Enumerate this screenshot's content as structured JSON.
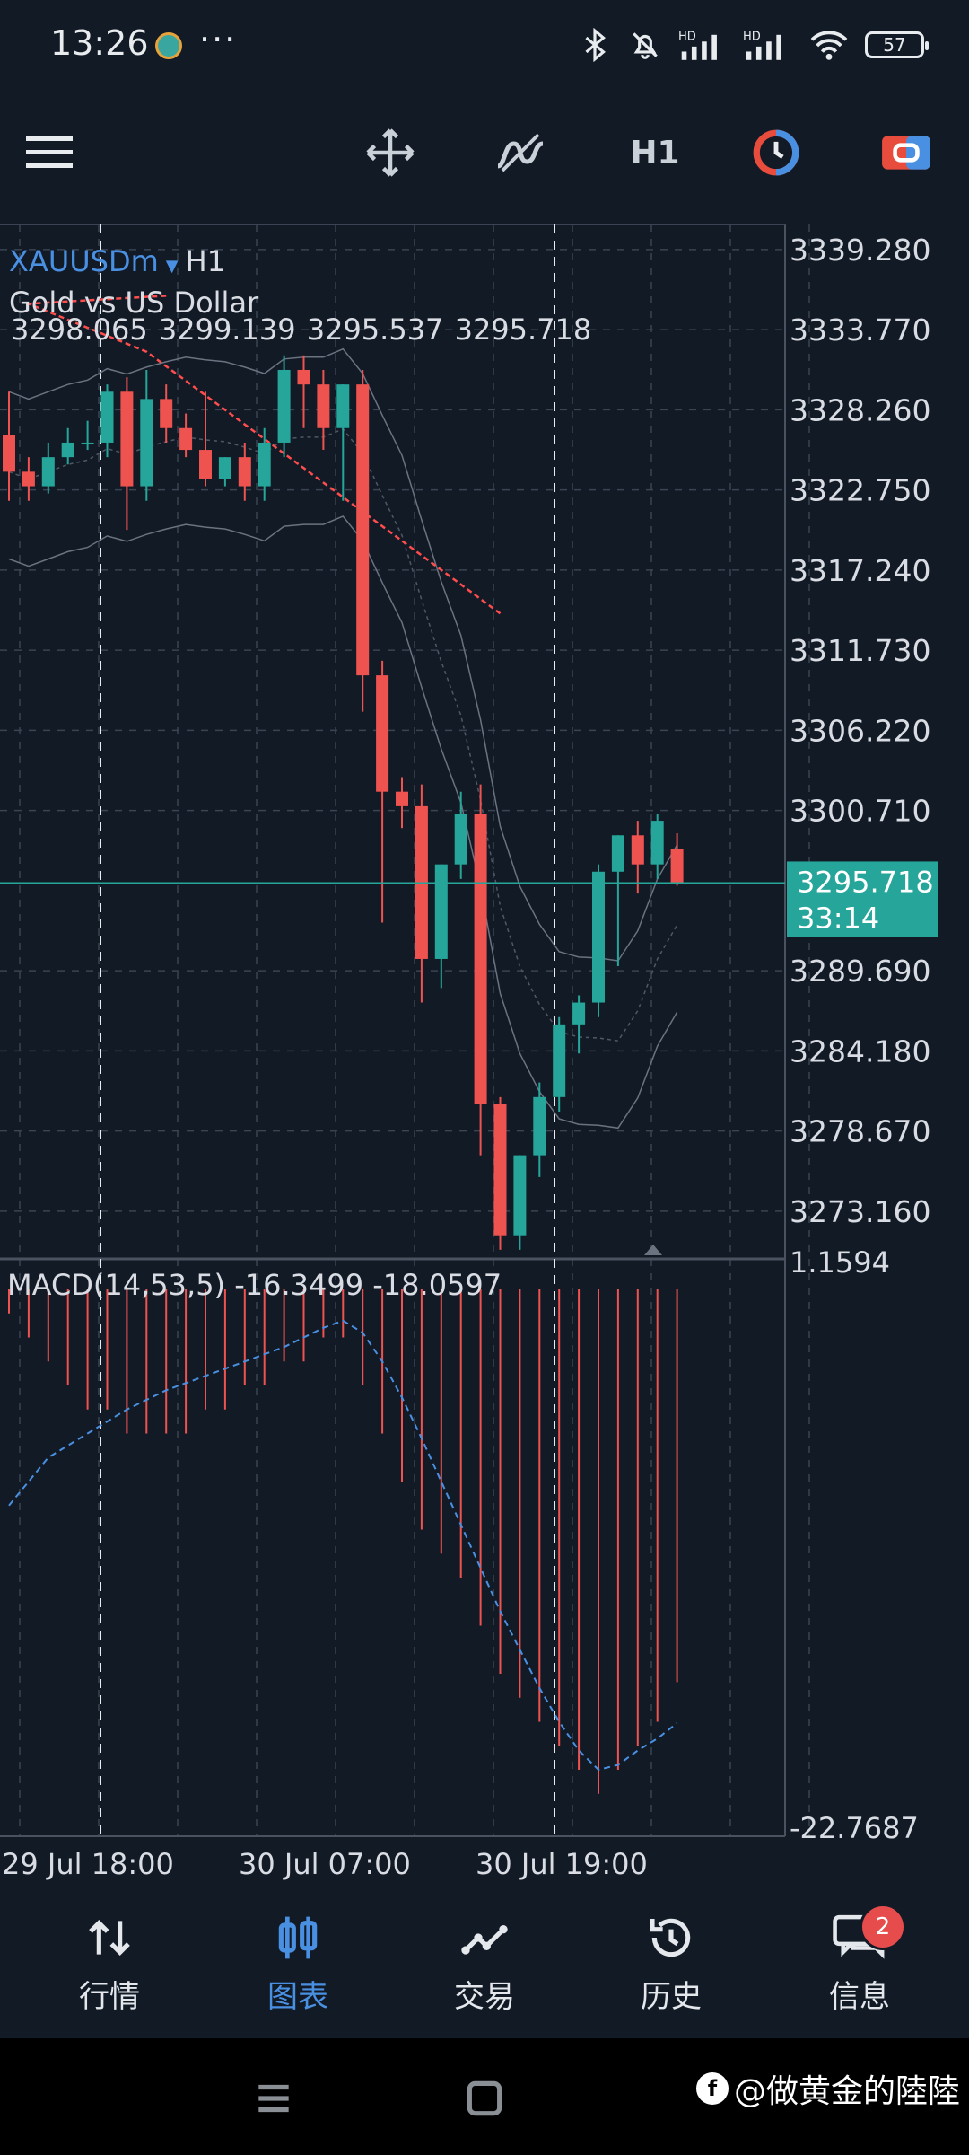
{
  "status_bar": {
    "time": "13:26",
    "more": "···",
    "battery": "57",
    "icons": [
      "bluetooth-icon",
      "mute-icon",
      "hd-signal-icon",
      "hd-signal-icon",
      "wifi-icon",
      "battery-icon"
    ]
  },
  "toolbar": {
    "icons": [
      "menu-icon",
      "move-crosshair-icon",
      "indicators-icon",
      "timer-icon",
      "account-icon"
    ],
    "timeframe": "H1"
  },
  "chart": {
    "symbol": "XAUUSDm",
    "timeframe": "H1",
    "description": "Gold vs US Dollar",
    "ohlc": "3298.065 3299.139 3295.537 3295.718",
    "current_price": "3295.718",
    "countdown": "33:14",
    "price_ticks": [
      "3339.280",
      "3333.770",
      "3328.260",
      "3322.750",
      "3317.240",
      "3311.730",
      "3306.220",
      "3300.710",
      "3289.690",
      "3284.180",
      "3278.670",
      "3273.160"
    ],
    "macd_label": "MACD(14,53,5) -16.3499 -18.0597",
    "macd_ticks": [
      "1.1594",
      "-22.7687"
    ],
    "time_ticks": [
      "29 Jul 18:00",
      "30 Jul 07:00",
      "30 Jul 19:00"
    ],
    "colors": {
      "up": "#26a69a",
      "down": "#ef5350",
      "price_line": "#26a69a",
      "background": "#121a26",
      "macd_signal": "#4a90e2"
    }
  },
  "chart_data": {
    "type": "candlestick",
    "ylim": [
      3270.0,
      3341.0
    ],
    "candles": [
      {
        "o": 3326.5,
        "h": 3329.5,
        "l": 3322.0,
        "c": 3324.0
      },
      {
        "o": 3324.0,
        "h": 3325.0,
        "l": 3322.0,
        "c": 3323.0
      },
      {
        "o": 3323.0,
        "h": 3326.0,
        "l": 3322.5,
        "c": 3325.0
      },
      {
        "o": 3325.0,
        "h": 3327.0,
        "l": 3324.5,
        "c": 3326.0
      },
      {
        "o": 3326.0,
        "h": 3327.5,
        "l": 3325.5,
        "c": 3326.0
      },
      {
        "o": 3326.0,
        "h": 3330.0,
        "l": 3325.0,
        "c": 3329.5
      },
      {
        "o": 3329.5,
        "h": 3330.5,
        "l": 3320.0,
        "c": 3323.0
      },
      {
        "o": 3323.0,
        "h": 3331.0,
        "l": 3322.0,
        "c": 3329.0
      },
      {
        "o": 3329.0,
        "h": 3330.0,
        "l": 3326.0,
        "c": 3327.0
      },
      {
        "o": 3327.0,
        "h": 3328.0,
        "l": 3325.0,
        "c": 3325.5
      },
      {
        "o": 3325.5,
        "h": 3329.5,
        "l": 3323.0,
        "c": 3323.5
      },
      {
        "o": 3323.5,
        "h": 3325.0,
        "l": 3323.0,
        "c": 3325.0
      },
      {
        "o": 3325.0,
        "h": 3326.0,
        "l": 3322.0,
        "c": 3323.0
      },
      {
        "o": 3323.0,
        "h": 3327.0,
        "l": 3322.0,
        "c": 3326.0
      },
      {
        "o": 3326.0,
        "h": 3332.0,
        "l": 3325.0,
        "c": 3331.0
      },
      {
        "o": 3331.0,
        "h": 3332.0,
        "l": 3327.0,
        "c": 3330.0
      },
      {
        "o": 3330.0,
        "h": 3331.0,
        "l": 3325.5,
        "c": 3327.0
      },
      {
        "o": 3327.0,
        "h": 3330.0,
        "l": 3322.0,
        "c": 3330.0
      },
      {
        "o": 3330.0,
        "h": 3331.0,
        "l": 3307.5,
        "c": 3310.0
      },
      {
        "o": 3310.0,
        "h": 3311.0,
        "l": 3293.0,
        "c": 3302.0
      },
      {
        "o": 3302.0,
        "h": 3303.0,
        "l": 3299.5,
        "c": 3301.0
      },
      {
        "o": 3301.0,
        "h": 3302.5,
        "l": 3287.5,
        "c": 3290.5
      },
      {
        "o": 3290.5,
        "h": 3297.0,
        "l": 3288.5,
        "c": 3297.0
      },
      {
        "o": 3297.0,
        "h": 3302.0,
        "l": 3296.0,
        "c": 3300.5
      },
      {
        "o": 3300.5,
        "h": 3302.5,
        "l": 3277.0,
        "c": 3280.5
      },
      {
        "o": 3280.5,
        "h": 3281.0,
        "l": 3270.5,
        "c": 3271.5
      },
      {
        "o": 3271.5,
        "h": 3277.0,
        "l": 3270.5,
        "c": 3277.0
      },
      {
        "o": 3277.0,
        "h": 3282.0,
        "l": 3275.5,
        "c": 3281.0
      },
      {
        "o": 3281.0,
        "h": 3286.5,
        "l": 3280.0,
        "c": 3286.0
      },
      {
        "o": 3286.0,
        "h": 3288.0,
        "l": 3284.0,
        "c": 3287.5
      },
      {
        "o": 3287.5,
        "h": 3297.0,
        "l": 3286.5,
        "c": 3296.5
      },
      {
        "o": 3296.5,
        "h": 3299.0,
        "l": 3290.0,
        "c": 3299.0
      },
      {
        "o": 3299.0,
        "h": 3300.0,
        "l": 3295.0,
        "c": 3297.0
      },
      {
        "o": 3297.0,
        "h": 3300.5,
        "l": 3296.0,
        "c": 3300.0
      },
      {
        "o": 3298.065,
        "h": 3299.139,
        "l": 3295.537,
        "c": 3295.718
      }
    ],
    "macd_ylim": [
      -22.7687,
      1.1594
    ],
    "macd_hist": [
      -1,
      -2,
      -3,
      -4,
      -5,
      -5,
      -6,
      -6,
      -6,
      -6,
      -5,
      -5,
      -4,
      -4,
      -3,
      -3,
      -2,
      -2,
      -4,
      -6,
      -8,
      -10,
      -11,
      -12,
      -14,
      -16,
      -17,
      -18,
      -19,
      -20,
      -21,
      -20,
      -19,
      -18,
      -16.35
    ],
    "macd_signal": [
      -9,
      -8,
      -7,
      -6.5,
      -6,
      -5.5,
      -5,
      -4.6,
      -4.2,
      -3.9,
      -3.6,
      -3.3,
      -3.0,
      -2.7,
      -2.4,
      -2.0,
      -1.6,
      -1.3,
      -1.8,
      -3,
      -4.5,
      -6.2,
      -8,
      -9.8,
      -11.6,
      -13.4,
      -15,
      -16.6,
      -18,
      -19.2,
      -20,
      -19.8,
      -19.2,
      -18.7,
      -18.06
    ]
  },
  "bottom_nav": [
    {
      "label": "行情",
      "icon": "quotes-icon"
    },
    {
      "label": "图表",
      "icon": "chart-icon"
    },
    {
      "label": "交易",
      "icon": "trade-icon"
    },
    {
      "label": "历史",
      "icon": "history-icon"
    },
    {
      "label": "信息",
      "icon": "messages-icon",
      "badge": "2"
    }
  ],
  "watermark": "@做黄金的陸陸"
}
